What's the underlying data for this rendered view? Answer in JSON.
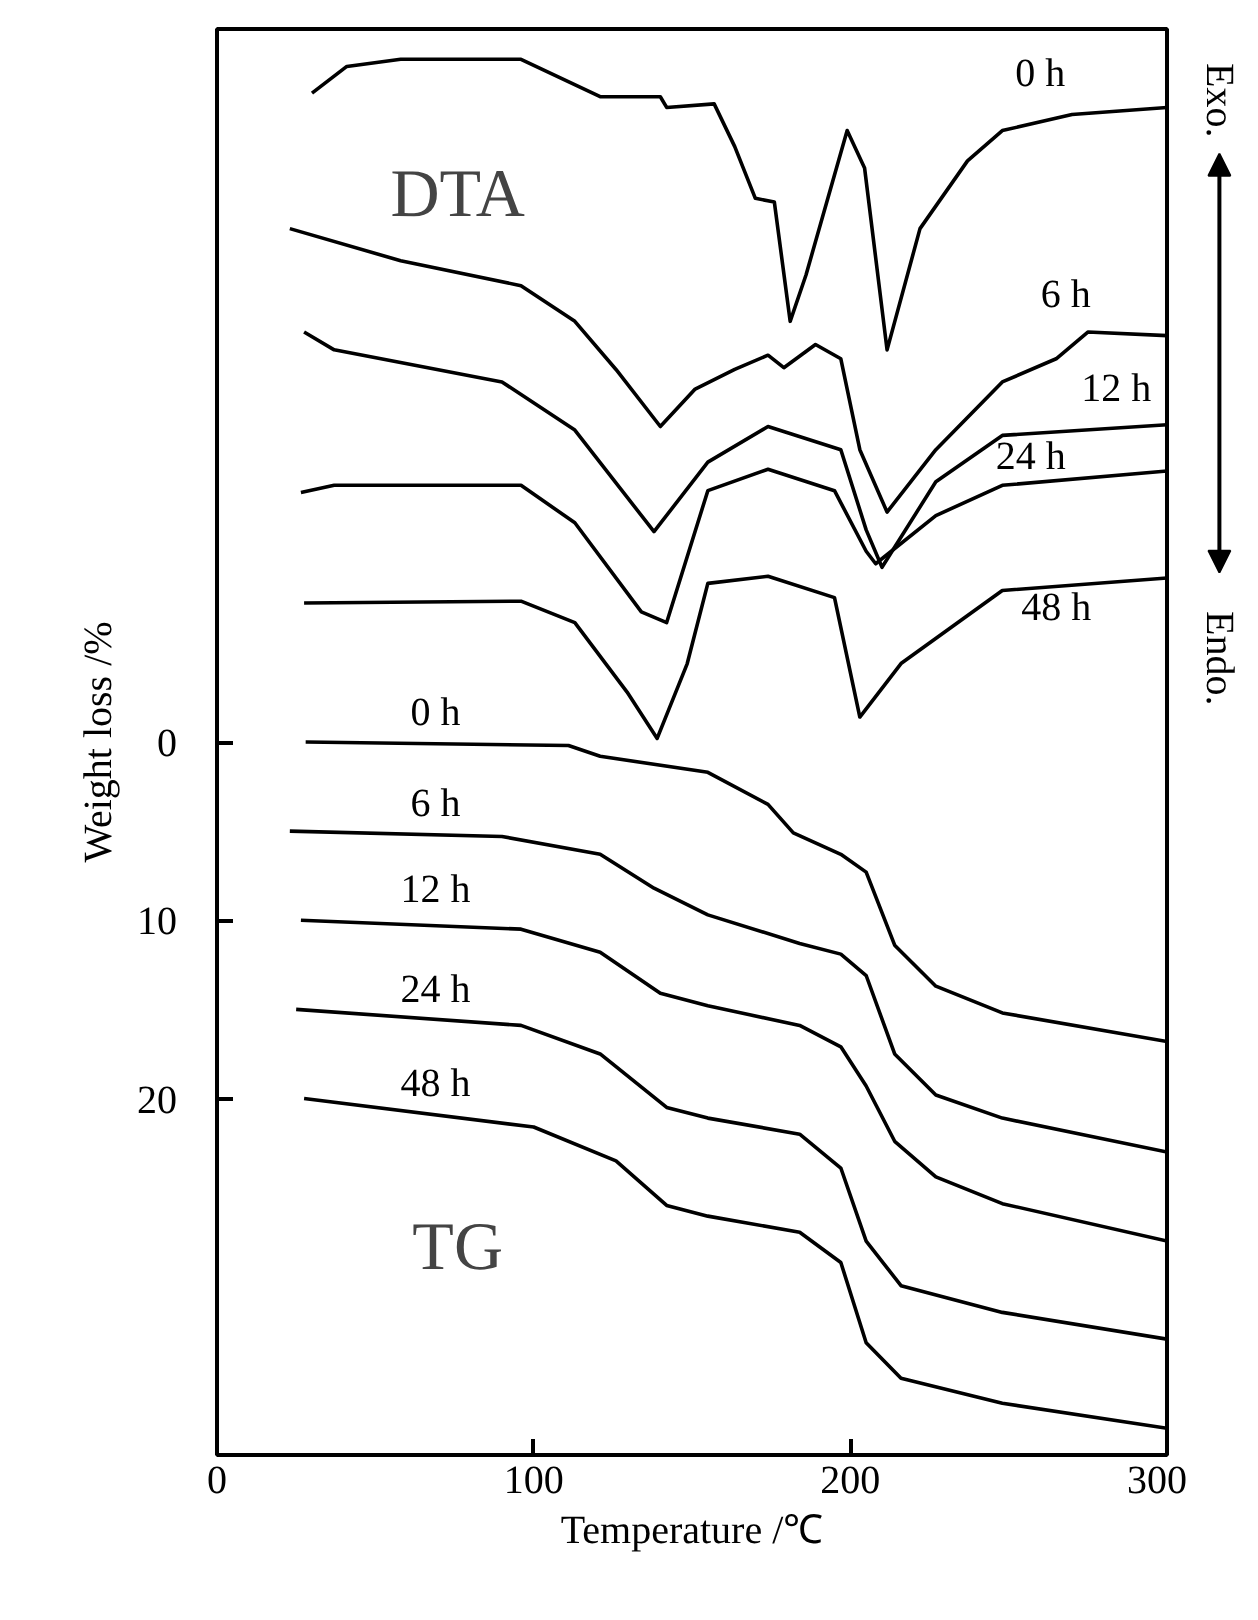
{
  "chart_data": {
    "type": "line",
    "xlabel": "Temperature /℃",
    "ylabel": "Weight loss /%",
    "xlim": [
      0,
      300
    ],
    "xticks": [
      0,
      100,
      200,
      300
    ],
    "ylim": [
      40,
      -40
    ],
    "yticks": [
      0,
      10,
      20
    ],
    "grid": false,
    "marker": "none",
    "line_style": "solid",
    "series": [
      {
        "name": "0 h",
        "color": "#000000",
        "x": [
          30,
          41,
          58,
          96,
          121,
          140,
          142,
          157,
          163.5,
          170,
          176,
          181,
          186,
          199,
          204.5,
          211.6,
          222,
          237,
          248,
          270,
          300
        ],
        "values": [
          -36.4,
          -37.9,
          -38.3,
          -38.3,
          -36.2,
          -36.2,
          -35.6,
          -35.8,
          -33.4,
          -30.5,
          -30.3,
          -23.6,
          -26.2,
          -34.3,
          -32.2,
          -22,
          -28.8,
          -32.6,
          -34.3,
          -35.2,
          -35.6
        ]
      },
      {
        "name": "6 h",
        "color": "#000000",
        "x": [
          23,
          58,
          96,
          113,
          126,
          140,
          151,
          163.5,
          174,
          179,
          189,
          197,
          203,
          211.6,
          227,
          248,
          265,
          275,
          300
        ],
        "values": [
          -28.8,
          -27,
          -25.6,
          -23.6,
          -20.9,
          -17.7,
          -19.8,
          -20.9,
          -21.7,
          -21,
          -22.3,
          -21.5,
          -16.4,
          -12.9,
          -16.4,
          -20.2,
          -21.5,
          -23,
          -22.8
        ]
      },
      {
        "name": "12 h",
        "color": "#000000",
        "x": [
          27.5,
          37,
          90,
          113,
          138,
          155,
          174,
          197,
          205,
          210,
          227,
          248,
          300
        ],
        "values": [
          -23,
          -22,
          -20.2,
          -17.5,
          -11.8,
          -15.7,
          -17.7,
          -16.4,
          -11.9,
          -9.8,
          -14.6,
          -17.2,
          -17.8
        ]
      },
      {
        "name": "24 h",
        "color": "#000000",
        "x": [
          26.5,
          37,
          96,
          113,
          134,
          142,
          155,
          174,
          195,
          205,
          208,
          227,
          248,
          300
        ],
        "values": [
          -14,
          -14.4,
          -14.4,
          -12.3,
          -7.3,
          -6.7,
          -14.1,
          -15.3,
          -14.1,
          -10.7,
          -10,
          -12.7,
          -14.4,
          -15.2
        ]
      },
      {
        "name": "48 h",
        "color": "#000000",
        "x": [
          27.5,
          96,
          113,
          129.5,
          139,
          148.5,
          155,
          174,
          195,
          203,
          216,
          248,
          300
        ],
        "values": [
          -7.8,
          -7.9,
          -6.7,
          -2.8,
          -0.2,
          -4.4,
          -8.9,
          -9.3,
          -8.1,
          -1.4,
          -4.4,
          -8.5,
          -9.2
        ]
      },
      {
        "name": "0 h",
        "color": "#000000",
        "x": [
          28,
          111,
          121,
          155,
          174,
          182,
          197,
          205,
          214,
          227,
          248,
          300
        ],
        "values": [
          0,
          0.2,
          0.8,
          1.7,
          3.5,
          5.1,
          6.3,
          7.3,
          11.4,
          13.7,
          15.2,
          16.8
        ]
      },
      {
        "name": "6 h",
        "color": "#000000",
        "x": [
          23,
          90,
          121,
          138,
          155,
          184,
          197,
          205,
          214,
          227,
          248,
          300
        ],
        "values": [
          5,
          5.3,
          6.3,
          8.2,
          9.7,
          11.3,
          11.9,
          13.1,
          17.5,
          19.8,
          21.1,
          23
        ]
      },
      {
        "name": "12 h",
        "color": "#000000",
        "x": [
          26.5,
          96,
          121,
          140,
          155,
          184,
          197,
          205,
          214,
          227,
          248,
          300
        ],
        "values": [
          10,
          10.5,
          11.8,
          14.1,
          14.8,
          15.9,
          17.1,
          19.3,
          22.4,
          24.4,
          25.9,
          28
        ]
      },
      {
        "name": "24 h",
        "color": "#000000",
        "x": [
          25,
          96,
          121,
          142,
          155,
          184,
          197,
          205,
          216,
          248,
          300
        ],
        "values": [
          15,
          15.9,
          17.5,
          20.5,
          21.1,
          22,
          23.9,
          28,
          30.5,
          32,
          33.5
        ]
      },
      {
        "name": "48 h",
        "color": "#000000",
        "x": [
          27.5,
          100,
          126,
          142,
          155,
          184,
          197,
          205,
          216,
          248,
          300
        ],
        "values": [
          20,
          21.6,
          23.5,
          26,
          26.6,
          27.5,
          29.2,
          33.7,
          35.7,
          37.1,
          38.5
        ]
      }
    ],
    "annotations": [
      "DTA",
      "TG",
      "Exo.",
      "Endo."
    ]
  }
}
